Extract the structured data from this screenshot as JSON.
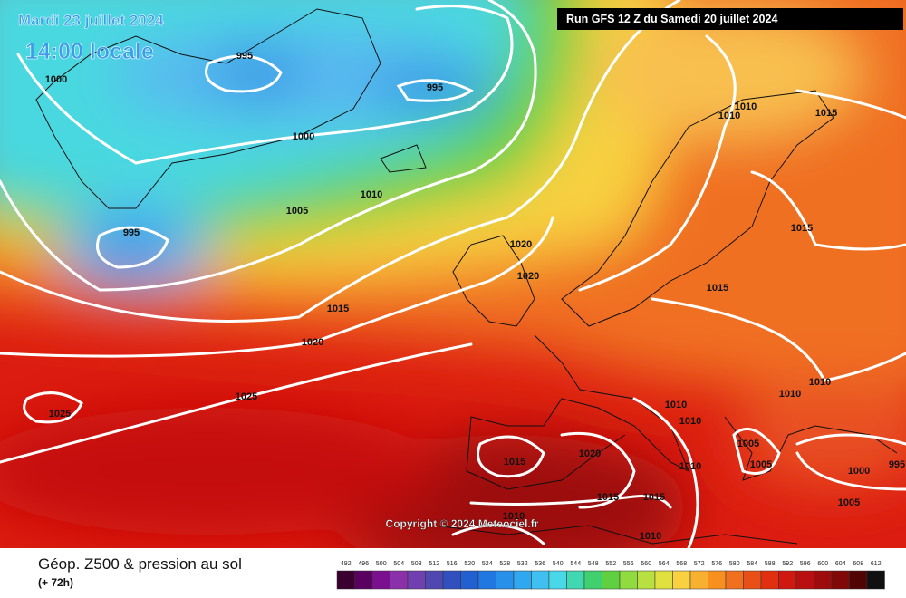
{
  "header": {
    "date": "Mardi 23 juillet 2024",
    "time": "14:00 locale",
    "run": "Run GFS 12 Z du Samedi 20 juillet 2024"
  },
  "isobars": [
    "995",
    "1000",
    "995",
    "1000",
    "1010",
    "1005",
    "995",
    "1010",
    "1010",
    "1015",
    "1020",
    "1020",
    "1015",
    "1015",
    "1015",
    "1020",
    "1025",
    "1025",
    "1010",
    "1010",
    "1010",
    "1010",
    "1005",
    "1005",
    "1000",
    "995",
    "1015",
    "1020",
    "1010",
    "1015",
    "1015",
    "1010",
    "1005",
    "1010"
  ],
  "copyright": "Copyright © 2024 Meteociel.fr",
  "footer": {
    "title": "Géop. Z500 & pression au sol",
    "lead": "(+ 72h)"
  },
  "scale": {
    "labels": [
      492,
      496,
      500,
      504,
      508,
      512,
      516,
      520,
      524,
      528,
      532,
      536,
      540,
      544,
      548,
      552,
      556,
      560,
      564,
      568,
      572,
      576,
      580,
      584,
      588,
      592,
      596,
      600,
      604,
      608,
      612
    ]
  }
}
